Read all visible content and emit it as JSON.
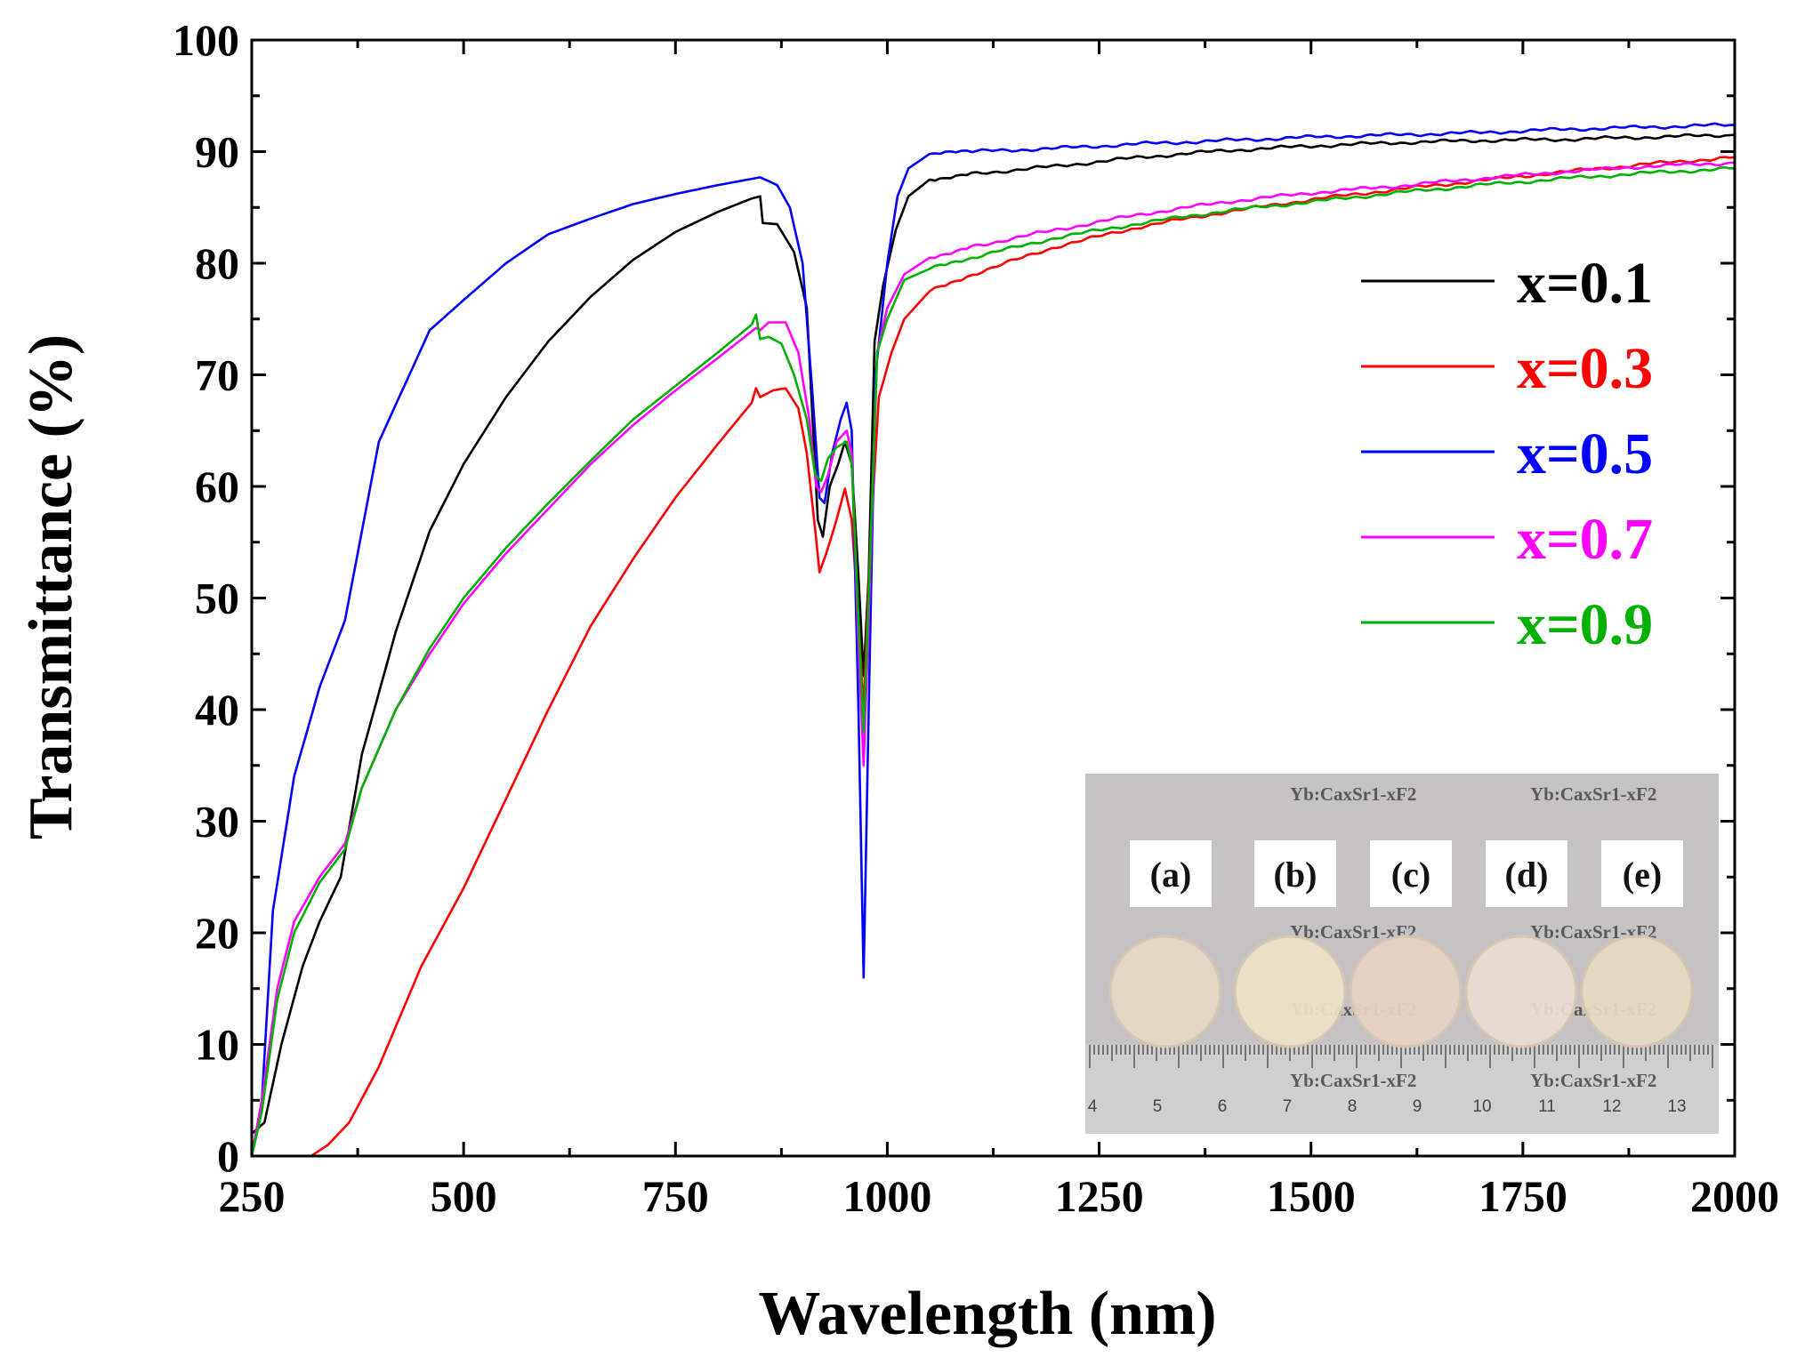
{
  "chart_data": {
    "type": "line",
    "xlabel": "Wavelength (nm)",
    "ylabel": "Transmittance (%)",
    "xlim": [
      250,
      2000
    ],
    "ylim": [
      0,
      100
    ],
    "xticks": [
      250,
      500,
      750,
      1000,
      1250,
      1500,
      1750,
      2000
    ],
    "yticks": [
      0,
      10,
      20,
      30,
      40,
      50,
      60,
      70,
      80,
      90,
      100
    ],
    "legend_position": "right",
    "series": [
      {
        "name": "x=0.1",
        "color": "#000000",
        "points": [
          [
            250,
            2
          ],
          [
            265,
            3
          ],
          [
            285,
            10
          ],
          [
            310,
            17
          ],
          [
            330,
            21
          ],
          [
            355,
            25
          ],
          [
            380,
            36
          ],
          [
            420,
            47
          ],
          [
            460,
            56
          ],
          [
            500,
            62
          ],
          [
            550,
            68
          ],
          [
            600,
            73
          ],
          [
            650,
            77
          ],
          [
            700,
            80.3
          ],
          [
            750,
            82.8
          ],
          [
            800,
            84.6
          ],
          [
            840,
            85.8
          ],
          [
            850,
            86
          ],
          [
            853,
            83.6
          ],
          [
            870,
            83.5
          ],
          [
            890,
            81
          ],
          [
            905,
            76
          ],
          [
            918,
            57
          ],
          [
            924,
            55.5
          ],
          [
            932,
            60
          ],
          [
            942,
            62
          ],
          [
            950,
            64
          ],
          [
            958,
            62
          ],
          [
            966,
            52
          ],
          [
            972,
            43
          ],
          [
            978,
            52
          ],
          [
            985,
            73
          ],
          [
            995,
            78
          ],
          [
            1010,
            83
          ],
          [
            1025,
            86
          ],
          [
            1050,
            87.5
          ],
          [
            1100,
            88
          ],
          [
            1200,
            88.7
          ],
          [
            1300,
            89.5
          ],
          [
            1400,
            90.1
          ],
          [
            1500,
            90.5
          ],
          [
            1600,
            90.8
          ],
          [
            1700,
            91
          ],
          [
            1800,
            91.1
          ],
          [
            1900,
            91.3
          ],
          [
            2000,
            91.5
          ]
        ]
      },
      {
        "name": "x=0.3",
        "color": "#ff0000",
        "points": [
          [
            250,
            0
          ],
          [
            320,
            0
          ],
          [
            340,
            1
          ],
          [
            365,
            3
          ],
          [
            400,
            8
          ],
          [
            450,
            17
          ],
          [
            500,
            24
          ],
          [
            550,
            32
          ],
          [
            600,
            40
          ],
          [
            650,
            47.5
          ],
          [
            700,
            53.5
          ],
          [
            750,
            59
          ],
          [
            800,
            63.8
          ],
          [
            840,
            67.5
          ],
          [
            845,
            68.8
          ],
          [
            850,
            68
          ],
          [
            865,
            68.6
          ],
          [
            880,
            68.8
          ],
          [
            895,
            67
          ],
          [
            905,
            63
          ],
          [
            915,
            56
          ],
          [
            920,
            52.3
          ],
          [
            928,
            54
          ],
          [
            940,
            57
          ],
          [
            950,
            59.8
          ],
          [
            958,
            57
          ],
          [
            966,
            48
          ],
          [
            972,
            40
          ],
          [
            980,
            55
          ],
          [
            990,
            68
          ],
          [
            1005,
            72
          ],
          [
            1020,
            75
          ],
          [
            1050,
            77.5
          ],
          [
            1100,
            79
          ],
          [
            1200,
            81.5
          ],
          [
            1300,
            83.3
          ],
          [
            1400,
            84.6
          ],
          [
            1500,
            85.7
          ],
          [
            1600,
            86.6
          ],
          [
            1700,
            87.4
          ],
          [
            1800,
            88.2
          ],
          [
            1900,
            88.9
          ],
          [
            2000,
            89.5
          ]
        ]
      },
      {
        "name": "x=0.5",
        "color": "#0000ff",
        "points": [
          [
            250,
            0
          ],
          [
            262,
            5
          ],
          [
            275,
            22
          ],
          [
            300,
            34
          ],
          [
            330,
            42
          ],
          [
            360,
            48
          ],
          [
            380,
            56
          ],
          [
            400,
            64
          ],
          [
            430,
            69
          ],
          [
            460,
            74
          ],
          [
            500,
            76.7
          ],
          [
            550,
            80
          ],
          [
            600,
            82.6
          ],
          [
            650,
            84
          ],
          [
            700,
            85.3
          ],
          [
            750,
            86.2
          ],
          [
            800,
            87
          ],
          [
            850,
            87.7
          ],
          [
            870,
            87
          ],
          [
            885,
            85
          ],
          [
            900,
            80
          ],
          [
            912,
            68
          ],
          [
            920,
            59
          ],
          [
            926,
            58.5
          ],
          [
            935,
            63
          ],
          [
            945,
            66
          ],
          [
            952,
            67.5
          ],
          [
            958,
            65
          ],
          [
            966,
            40
          ],
          [
            972,
            16
          ],
          [
            978,
            40
          ],
          [
            986,
            70
          ],
          [
            1000,
            80
          ],
          [
            1012,
            86
          ],
          [
            1025,
            88.5
          ],
          [
            1050,
            89.8
          ],
          [
            1100,
            90
          ],
          [
            1200,
            90.3
          ],
          [
            1300,
            90.7
          ],
          [
            1400,
            91
          ],
          [
            1500,
            91.3
          ],
          [
            1600,
            91.5
          ],
          [
            1700,
            91.7
          ],
          [
            1800,
            92
          ],
          [
            1900,
            92.2
          ],
          [
            2000,
            92.4
          ]
        ]
      },
      {
        "name": "x=0.7",
        "color": "#ff00ff",
        "points": [
          [
            250,
            0
          ],
          [
            262,
            5
          ],
          [
            280,
            15
          ],
          [
            300,
            21
          ],
          [
            330,
            25
          ],
          [
            360,
            28
          ],
          [
            380,
            33
          ],
          [
            420,
            40
          ],
          [
            460,
            45
          ],
          [
            500,
            49.5
          ],
          [
            550,
            54
          ],
          [
            600,
            58
          ],
          [
            650,
            62
          ],
          [
            700,
            65.5
          ],
          [
            750,
            68.6
          ],
          [
            800,
            71.5
          ],
          [
            845,
            74.2
          ],
          [
            850,
            74
          ],
          [
            860,
            74.7
          ],
          [
            880,
            74.7
          ],
          [
            895,
            72
          ],
          [
            908,
            66
          ],
          [
            916,
            60
          ],
          [
            922,
            59.5
          ],
          [
            930,
            61
          ],
          [
            940,
            64
          ],
          [
            952,
            65
          ],
          [
            958,
            63
          ],
          [
            966,
            46
          ],
          [
            972,
            35
          ],
          [
            978,
            48
          ],
          [
            988,
            72
          ],
          [
            1000,
            76
          ],
          [
            1020,
            79
          ],
          [
            1050,
            80.5
          ],
          [
            1100,
            81.5
          ],
          [
            1200,
            83
          ],
          [
            1300,
            84.4
          ],
          [
            1400,
            85.5
          ],
          [
            1500,
            86.3
          ],
          [
            1600,
            86.9
          ],
          [
            1700,
            87.6
          ],
          [
            1800,
            88.2
          ],
          [
            1900,
            88.7
          ],
          [
            2000,
            89
          ]
        ]
      },
      {
        "name": "x=0.9",
        "color": "#00b000",
        "points": [
          [
            250,
            0
          ],
          [
            262,
            4
          ],
          [
            280,
            14
          ],
          [
            300,
            20
          ],
          [
            330,
            24.5
          ],
          [
            360,
            27.5
          ],
          [
            380,
            33
          ],
          [
            420,
            40
          ],
          [
            460,
            45.5
          ],
          [
            500,
            50
          ],
          [
            550,
            54.5
          ],
          [
            600,
            58.5
          ],
          [
            650,
            62.3
          ],
          [
            700,
            66
          ],
          [
            750,
            69
          ],
          [
            800,
            72
          ],
          [
            840,
            74.5
          ],
          [
            845,
            75.4
          ],
          [
            850,
            73.2
          ],
          [
            860,
            73.4
          ],
          [
            875,
            72.8
          ],
          [
            890,
            70
          ],
          [
            905,
            66
          ],
          [
            915,
            61
          ],
          [
            922,
            60.5
          ],
          [
            930,
            62.5
          ],
          [
            940,
            63.5
          ],
          [
            952,
            64
          ],
          [
            958,
            62
          ],
          [
            966,
            48
          ],
          [
            972,
            38
          ],
          [
            978,
            50
          ],
          [
            988,
            72
          ],
          [
            1000,
            75
          ],
          [
            1020,
            78.5
          ],
          [
            1050,
            79.5
          ],
          [
            1100,
            80.5
          ],
          [
            1200,
            82.3
          ],
          [
            1300,
            83.6
          ],
          [
            1400,
            84.7
          ],
          [
            1500,
            85.5
          ],
          [
            1600,
            86.3
          ],
          [
            1700,
            87
          ],
          [
            1800,
            87.6
          ],
          [
            1900,
            88.1
          ],
          [
            2000,
            88.5
          ]
        ]
      }
    ],
    "inset": {
      "labels": [
        "(a)",
        "(b)",
        "(c)",
        "(d)",
        "(e)"
      ],
      "background_text": "Yb:CaxSr1-xF2",
      "ruler_numbers": [
        "4",
        "5",
        "6",
        "7",
        "8",
        "9",
        "10",
        "11",
        "12",
        "13"
      ]
    }
  }
}
